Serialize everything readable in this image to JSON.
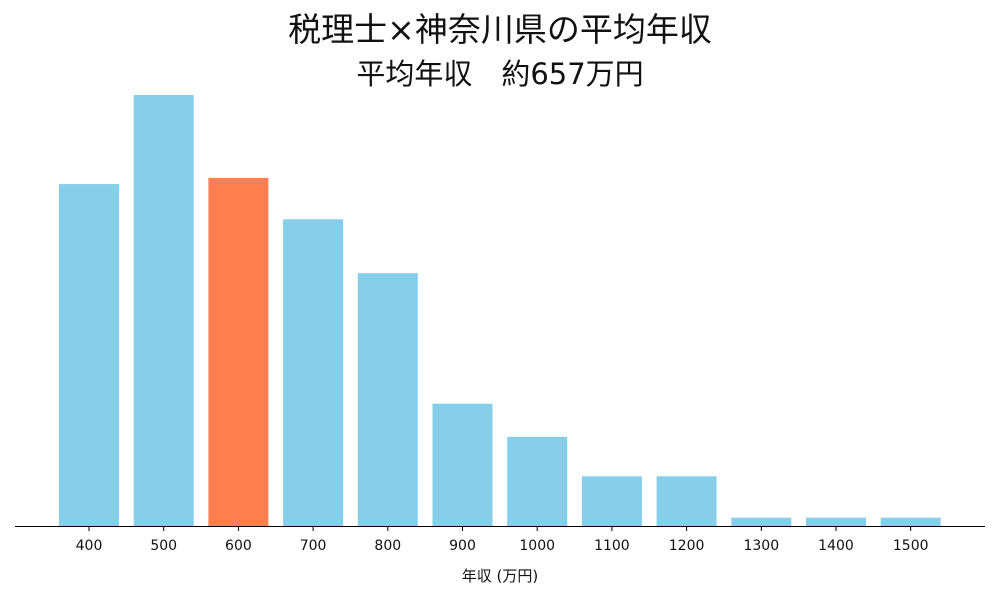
{
  "chart_data": {
    "type": "bar",
    "title": "税理士×神奈川県の平均年収",
    "subtitle": "平均年収　約657万円",
    "xlabel": "年収 (万円)",
    "ylabel": "",
    "categories": [
      "400",
      "500",
      "600",
      "700",
      "800",
      "900",
      "1000",
      "1100",
      "1200",
      "1300",
      "1400",
      "1500"
    ],
    "values": [
      82.5,
      104,
      84,
      74,
      61,
      29.5,
      21.5,
      12,
      12,
      2,
      2,
      2
    ],
    "ylim": [
      0,
      104
    ],
    "highlight_category": "600",
    "colors": {
      "bar": "#87CEEB",
      "highlight": "#FF7F50",
      "axis": "#000000"
    },
    "grid": false,
    "legend": "none"
  }
}
